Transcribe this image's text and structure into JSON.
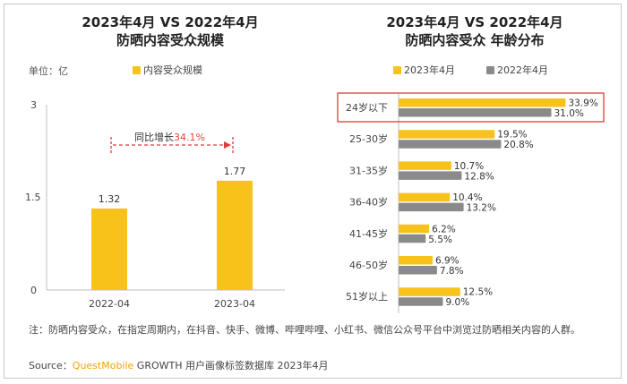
{
  "left": {
    "title_line1": "2023年4月 VS 2022年4月",
    "title_line2": "防晒内容受众规模",
    "unit_label": "单位：亿",
    "legend_label": "内容受众规模",
    "growth_prefix": "同比增长",
    "growth_value": "34.1%"
  },
  "right": {
    "title_line1": "2023年4月 VS 2022年4月",
    "title_line2": "防晒内容受众 年龄分布",
    "legend_2023": "2023年4月",
    "legend_2022": "2022年4月"
  },
  "note": "注：防晒内容受众，在指定周期内，在抖音、快手、微博、哔哩哔哩、小红书、微信公众号平台中浏览过防晒相关内容的人群。",
  "source": {
    "prefix": "Source：",
    "brand": "QuestMobile",
    "rest": " GROWTH 用户画像标签数据库 2023年4月"
  },
  "colors": {
    "gold": "#f7c21a",
    "gray": "#8a8a8a",
    "highlight_box": "#e03a3a",
    "growth_arrow": "#e03a3a"
  },
  "chart_data": [
    {
      "type": "bar",
      "categories": [
        "2022-04",
        "2023-04"
      ],
      "series": [
        {
          "name": "内容受众规模",
          "values": [
            1.32,
            1.77
          ]
        }
      ],
      "data_labels": [
        "1.32",
        "1.77"
      ],
      "yticks": [
        "0",
        "1.5",
        "3"
      ],
      "ylim": [
        0,
        3
      ],
      "title": "2023年4月 VS 2022年4月 防晒内容受众规模"
    },
    {
      "type": "bar",
      "orientation": "horizontal",
      "categories": [
        "24岁以下",
        "25-30岁",
        "31-35岁",
        "36-40岁",
        "41-45岁",
        "46-50岁",
        "51岁以上"
      ],
      "series": [
        {
          "name": "2023年4月",
          "values": [
            33.9,
            19.5,
            10.7,
            10.4,
            6.2,
            6.9,
            12.5
          ],
          "labels": [
            "33.9%",
            "19.5%",
            "10.7%",
            "10.4%",
            "6.2%",
            "6.9%",
            "12.5%"
          ]
        },
        {
          "name": "2022年4月",
          "values": [
            31.0,
            20.8,
            12.8,
            13.2,
            5.5,
            7.8,
            9.0
          ],
          "labels": [
            "31.0%",
            "20.8%",
            "12.8%",
            "13.2%",
            "5.5%",
            "7.8%",
            "9.0%"
          ]
        }
      ],
      "highlighted_category": "24岁以下",
      "title": "2023年4月 VS 2022年4月 防晒内容受众 年龄分布"
    }
  ]
}
